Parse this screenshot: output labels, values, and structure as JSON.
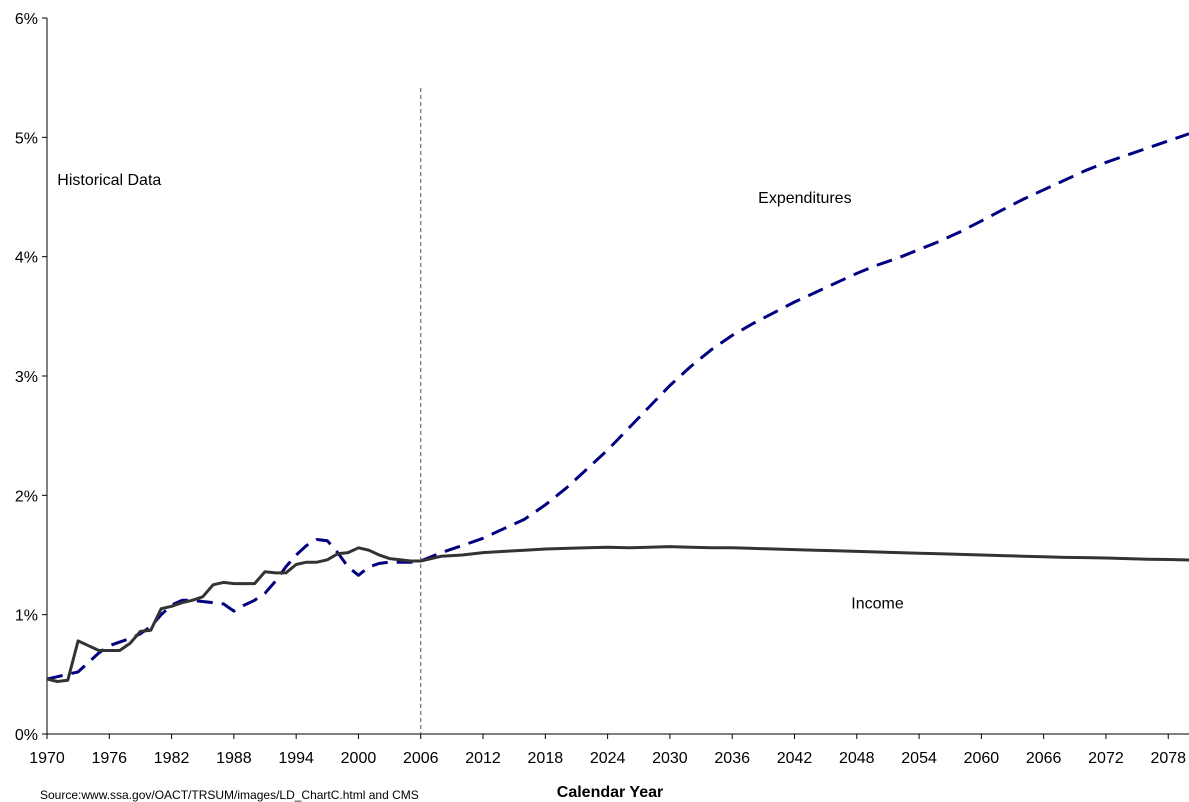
{
  "chart_data": {
    "type": "line",
    "xlabel": "Calendar Year",
    "ylabel": "",
    "title": "",
    "source": "Source:www.ssa.gov/OACT/TRSUM/images/LD_ChartC.html and CMS",
    "xlim": [
      1970,
      2080
    ],
    "ylim": [
      0,
      6
    ],
    "x_ticks": [
      1970,
      1976,
      1982,
      1988,
      1994,
      2000,
      2006,
      2012,
      2018,
      2024,
      2030,
      2036,
      2042,
      2048,
      2054,
      2060,
      2066,
      2072,
      2078
    ],
    "x_tick_labels": [
      "1970",
      "1976",
      "1982",
      "1988",
      "1994",
      "2000",
      "2006",
      "2012",
      "2018",
      "2024",
      "2030",
      "2036",
      "2042",
      "2048",
      "2054",
      "2060",
      "2066",
      "2072",
      "2078"
    ],
    "y_ticks": [
      0,
      1,
      2,
      3,
      4,
      5,
      6
    ],
    "y_tick_labels": [
      "0%",
      "1%",
      "2%",
      "3%",
      "4%",
      "5%",
      "6%"
    ],
    "grid": false,
    "legend": "none",
    "divider_x": 2006,
    "annotations": [
      {
        "text": "Historical Data",
        "x": 1976,
        "y": 4.6
      },
      {
        "text": "Expenditures",
        "x": 2043,
        "y": 4.45
      },
      {
        "text": "Income",
        "x": 2050,
        "y": 1.05
      }
    ],
    "series": [
      {
        "name": "Expenditures",
        "color": "#000080",
        "style": "dashed",
        "x": [
          1970,
          1971,
          1972,
          1973,
          1974,
          1975,
          1976,
          1977,
          1978,
          1979,
          1980,
          1981,
          1982,
          1983,
          1984,
          1985,
          1986,
          1987,
          1988,
          1989,
          1990,
          1991,
          1992,
          1993,
          1994,
          1995,
          1996,
          1997,
          1998,
          1999,
          2000,
          2001,
          2002,
          2003,
          2004,
          2005,
          2006,
          2008,
          2010,
          2012,
          2014,
          2016,
          2018,
          2020,
          2022,
          2024,
          2026,
          2028,
          2030,
          2032,
          2034,
          2036,
          2038,
          2040,
          2042,
          2044,
          2046,
          2048,
          2050,
          2052,
          2054,
          2056,
          2058,
          2060,
          2062,
          2064,
          2066,
          2068,
          2070,
          2072,
          2074,
          2076,
          2078,
          2080
        ],
        "values": [
          0.46,
          0.48,
          0.5,
          0.52,
          0.6,
          0.68,
          0.74,
          0.77,
          0.8,
          0.84,
          0.9,
          1.0,
          1.08,
          1.12,
          1.12,
          1.11,
          1.1,
          1.09,
          1.03,
          1.08,
          1.12,
          1.18,
          1.28,
          1.4,
          1.5,
          1.58,
          1.63,
          1.62,
          1.52,
          1.4,
          1.33,
          1.4,
          1.43,
          1.44,
          1.44,
          1.44,
          1.45,
          1.52,
          1.58,
          1.64,
          1.72,
          1.8,
          1.92,
          2.06,
          2.22,
          2.38,
          2.56,
          2.74,
          2.92,
          3.08,
          3.22,
          3.34,
          3.44,
          3.53,
          3.62,
          3.7,
          3.78,
          3.86,
          3.93,
          3.99,
          4.06,
          4.13,
          4.21,
          4.3,
          4.39,
          4.48,
          4.56,
          4.64,
          4.72,
          4.79,
          4.85,
          4.91,
          4.97,
          5.03
        ]
      },
      {
        "name": "Income",
        "color": "#333333",
        "style": "solid",
        "x": [
          1970,
          1971,
          1972,
          1973,
          1974,
          1975,
          1976,
          1977,
          1978,
          1979,
          1980,
          1981,
          1982,
          1983,
          1984,
          1985,
          1986,
          1987,
          1988,
          1989,
          1990,
          1991,
          1992,
          1993,
          1994,
          1995,
          1996,
          1997,
          1998,
          1999,
          2000,
          2001,
          2002,
          2003,
          2004,
          2005,
          2006,
          2008,
          2010,
          2012,
          2014,
          2016,
          2018,
          2020,
          2022,
          2024,
          2026,
          2028,
          2030,
          2032,
          2034,
          2036,
          2038,
          2040,
          2042,
          2044,
          2046,
          2048,
          2050,
          2052,
          2054,
          2056,
          2058,
          2060,
          2062,
          2064,
          2066,
          2068,
          2070,
          2072,
          2074,
          2076,
          2078,
          2080
        ],
        "values": [
          0.46,
          0.44,
          0.45,
          0.78,
          0.74,
          0.7,
          0.7,
          0.7,
          0.76,
          0.86,
          0.87,
          1.05,
          1.07,
          1.1,
          1.12,
          1.15,
          1.25,
          1.27,
          1.26,
          1.26,
          1.26,
          1.36,
          1.35,
          1.35,
          1.42,
          1.44,
          1.44,
          1.46,
          1.51,
          1.52,
          1.56,
          1.54,
          1.5,
          1.47,
          1.46,
          1.45,
          1.45,
          1.49,
          1.5,
          1.52,
          1.53,
          1.54,
          1.55,
          1.555,
          1.56,
          1.565,
          1.56,
          1.565,
          1.57,
          1.565,
          1.56,
          1.56,
          1.555,
          1.55,
          1.545,
          1.54,
          1.535,
          1.53,
          1.525,
          1.52,
          1.515,
          1.51,
          1.505,
          1.5,
          1.495,
          1.49,
          1.485,
          1.48,
          1.478,
          1.475,
          1.47,
          1.465,
          1.462,
          1.458
        ]
      }
    ]
  }
}
